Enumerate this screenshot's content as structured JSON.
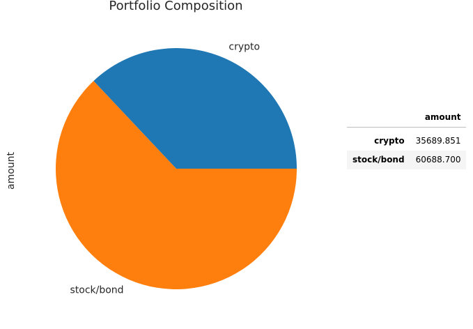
{
  "chart_data": {
    "type": "pie",
    "title": "Portfolio Composition",
    "ylabel": "amount",
    "categories": [
      "crypto",
      "stock/bond"
    ],
    "values": [
      35689.851,
      60688.7
    ],
    "colors": [
      "#1f77b4",
      "#ff7f0e"
    ],
    "start_angle_deg": 0,
    "direction": "counterclockwise"
  },
  "table": {
    "column_header": "amount",
    "rows": [
      {
        "label": "crypto",
        "value": "35689.851"
      },
      {
        "label": "stock/bond",
        "value": "60688.700"
      }
    ]
  }
}
